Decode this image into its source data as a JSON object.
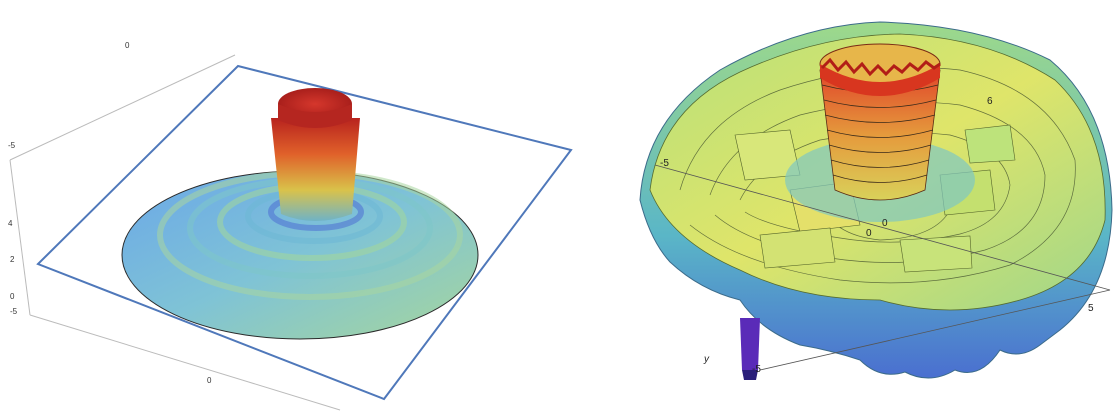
{
  "left_plot": {
    "ticks": {
      "top_axis_0": "0",
      "z_minus5": "-5",
      "z_4": "4",
      "z_2": "2",
      "z_0": "0",
      "z_bottom_minus5": "-5",
      "bottom_axis_0": "0"
    },
    "colors": {
      "peak": "#c0281f",
      "mid": "#e6c54b",
      "base": "#5b9ee3",
      "frame": "#4f78ba"
    }
  },
  "right_plot": {
    "ticks": {
      "left_minus5": "-5",
      "center_0": "0",
      "center_0b": "0",
      "right_5": "5",
      "bottom_minus5": "-5",
      "y_label": "y",
      "right_6": "6"
    },
    "colors": {
      "peak": "#d0301f",
      "surface": "#c9e26b",
      "low": "#6fb8c8",
      "deep": "#3b3fb5"
    }
  }
}
